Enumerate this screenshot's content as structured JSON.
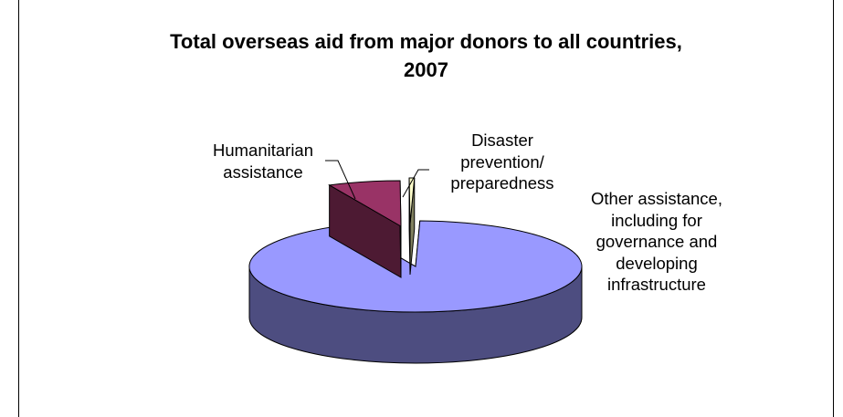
{
  "chart_data": {
    "type": "pie",
    "title_line1": "Total overseas aid from major donors to all countries,",
    "title_line2": "2007",
    "slices": [
      {
        "name": "Other assistance, including for governance and developing infrastructure",
        "lines": [
          "Other assistance,",
          "including for",
          "governance and",
          "developing",
          "infrastructure"
        ],
        "value": 92.5,
        "color": "#9999ff",
        "side": "#4d4d80"
      },
      {
        "name": "Humanitarian assistance",
        "lines": [
          "Humanitarian",
          "assistance"
        ],
        "value": 7.0,
        "color": "#993366",
        "side": "#4d1a33"
      },
      {
        "name": "Disaster prevention/ preparedness",
        "lines": [
          "Disaster",
          "prevention/",
          "preparedness"
        ],
        "value": 0.5,
        "color": "#ffffcc",
        "side": "#80805f"
      }
    ],
    "style": "3d-exploded",
    "legend": "none"
  }
}
